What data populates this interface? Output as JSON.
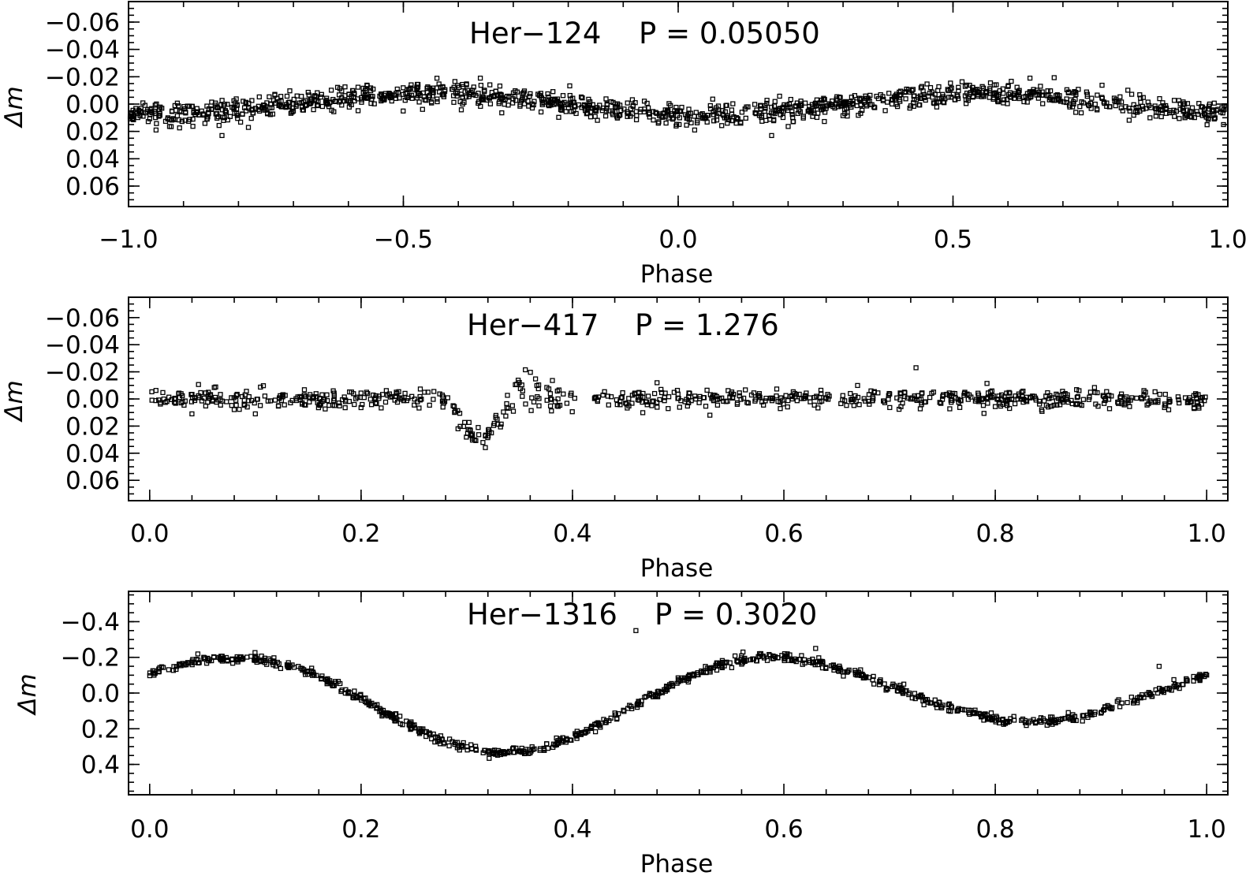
{
  "chart_data": [
    {
      "type": "scatter",
      "title_name": "Her−124",
      "title_period": "P = 0.05050",
      "xlabel": "Phase",
      "ylabel": "Δm",
      "xlim": [
        -1.0,
        1.0
      ],
      "ylim": [
        0.075,
        -0.075
      ],
      "x_ticks": [
        "−1.0",
        "−0.5",
        "0.0",
        "0.5",
        "1.0"
      ],
      "x_tick_values": [
        -1.0,
        -0.5,
        0.0,
        0.5,
        1.0
      ],
      "y_ticks": [
        "−0.06",
        "−0.04",
        "−0.02",
        "0.00",
        "0.02",
        "0.04",
        "0.06"
      ],
      "y_tick_values": [
        -0.06,
        -0.04,
        -0.02,
        0.0,
        0.02,
        0.04,
        0.06
      ],
      "y_reversed": true,
      "model": {
        "form": "sinusoid",
        "period_in_phase": 1.0,
        "amplitude": 0.008,
        "peak_phase": 0.55,
        "scatter": 0.004,
        "n_points": 1300
      },
      "outliers": [
        [
          -0.83,
          0.023
        ],
        [
          0.17,
          0.023
        ],
        [
          -0.95,
          0.019
        ],
        [
          0.03,
          0.019
        ],
        [
          -0.36,
          -0.019
        ],
        [
          0.64,
          -0.019
        ]
      ],
      "marker": "open-square"
    },
    {
      "type": "scatter",
      "title_name": "Her−417",
      "title_period": "P = 1.276",
      "xlabel": "Phase",
      "ylabel": "Δm",
      "xlim": [
        -0.02,
        1.02
      ],
      "ylim": [
        0.075,
        -0.075
      ],
      "x_ticks": [
        "0.0",
        "0.2",
        "0.4",
        "0.6",
        "0.8",
        "1.0"
      ],
      "x_tick_values": [
        0.0,
        0.2,
        0.4,
        0.6,
        0.8,
        1.0
      ],
      "y_ticks": [
        "−0.06",
        "−0.04",
        "−0.02",
        "0.00",
        "0.02",
        "0.04",
        "0.06"
      ],
      "y_tick_values": [
        -0.06,
        -0.04,
        -0.02,
        0.0,
        0.02,
        0.04,
        0.06
      ],
      "y_reversed": true,
      "model": {
        "form": "flat-with-eclipse",
        "baseline": 0.0,
        "eclipse_center": 0.312,
        "eclipse_depth": 0.032,
        "eclipse_half_width": 0.035,
        "post_eclipse_bump": -0.008,
        "gap": [
          0.405,
          0.42
        ],
        "scatter": 0.0035,
        "n_points": 800
      },
      "outliers": [
        [
          0.725,
          -0.023
        ],
        [
          0.53,
          0.012
        ],
        [
          0.48,
          -0.012
        ],
        [
          0.04,
          0.011
        ],
        [
          0.1,
          0.011
        ]
      ],
      "marker": "open-square"
    },
    {
      "type": "scatter",
      "title_name": "Her−1316",
      "title_period": "P = 0.3020",
      "xlabel": "Phase",
      "ylabel": "Δm",
      "xlim": [
        -0.02,
        1.02
      ],
      "ylim": [
        0.57,
        -0.57
      ],
      "x_ticks": [
        "0.0",
        "0.2",
        "0.4",
        "0.6",
        "0.8",
        "1.0"
      ],
      "x_tick_values": [
        0.0,
        0.2,
        0.4,
        0.6,
        0.8,
        1.0
      ],
      "y_ticks": [
        "−0.4",
        "−0.2",
        "0.0",
        "0.2",
        "0.4"
      ],
      "y_tick_values": [
        -0.4,
        -0.2,
        0.0,
        0.2,
        0.4
      ],
      "y_reversed": true,
      "model": {
        "form": "eclipsing-binary",
        "primary_min_phase": 0.335,
        "primary_min_value": 0.33,
        "secondary_min_phase": 0.835,
        "secondary_min_value": 0.16,
        "max_value": -0.2,
        "max_phases": [
          0.09,
          0.6
        ],
        "scatter": 0.012,
        "n_points": 900
      },
      "outliers": [
        [
          0.46,
          -0.35
        ],
        [
          0.955,
          -0.15
        ],
        [
          0.63,
          -0.25
        ]
      ],
      "marker": "open-square"
    }
  ]
}
